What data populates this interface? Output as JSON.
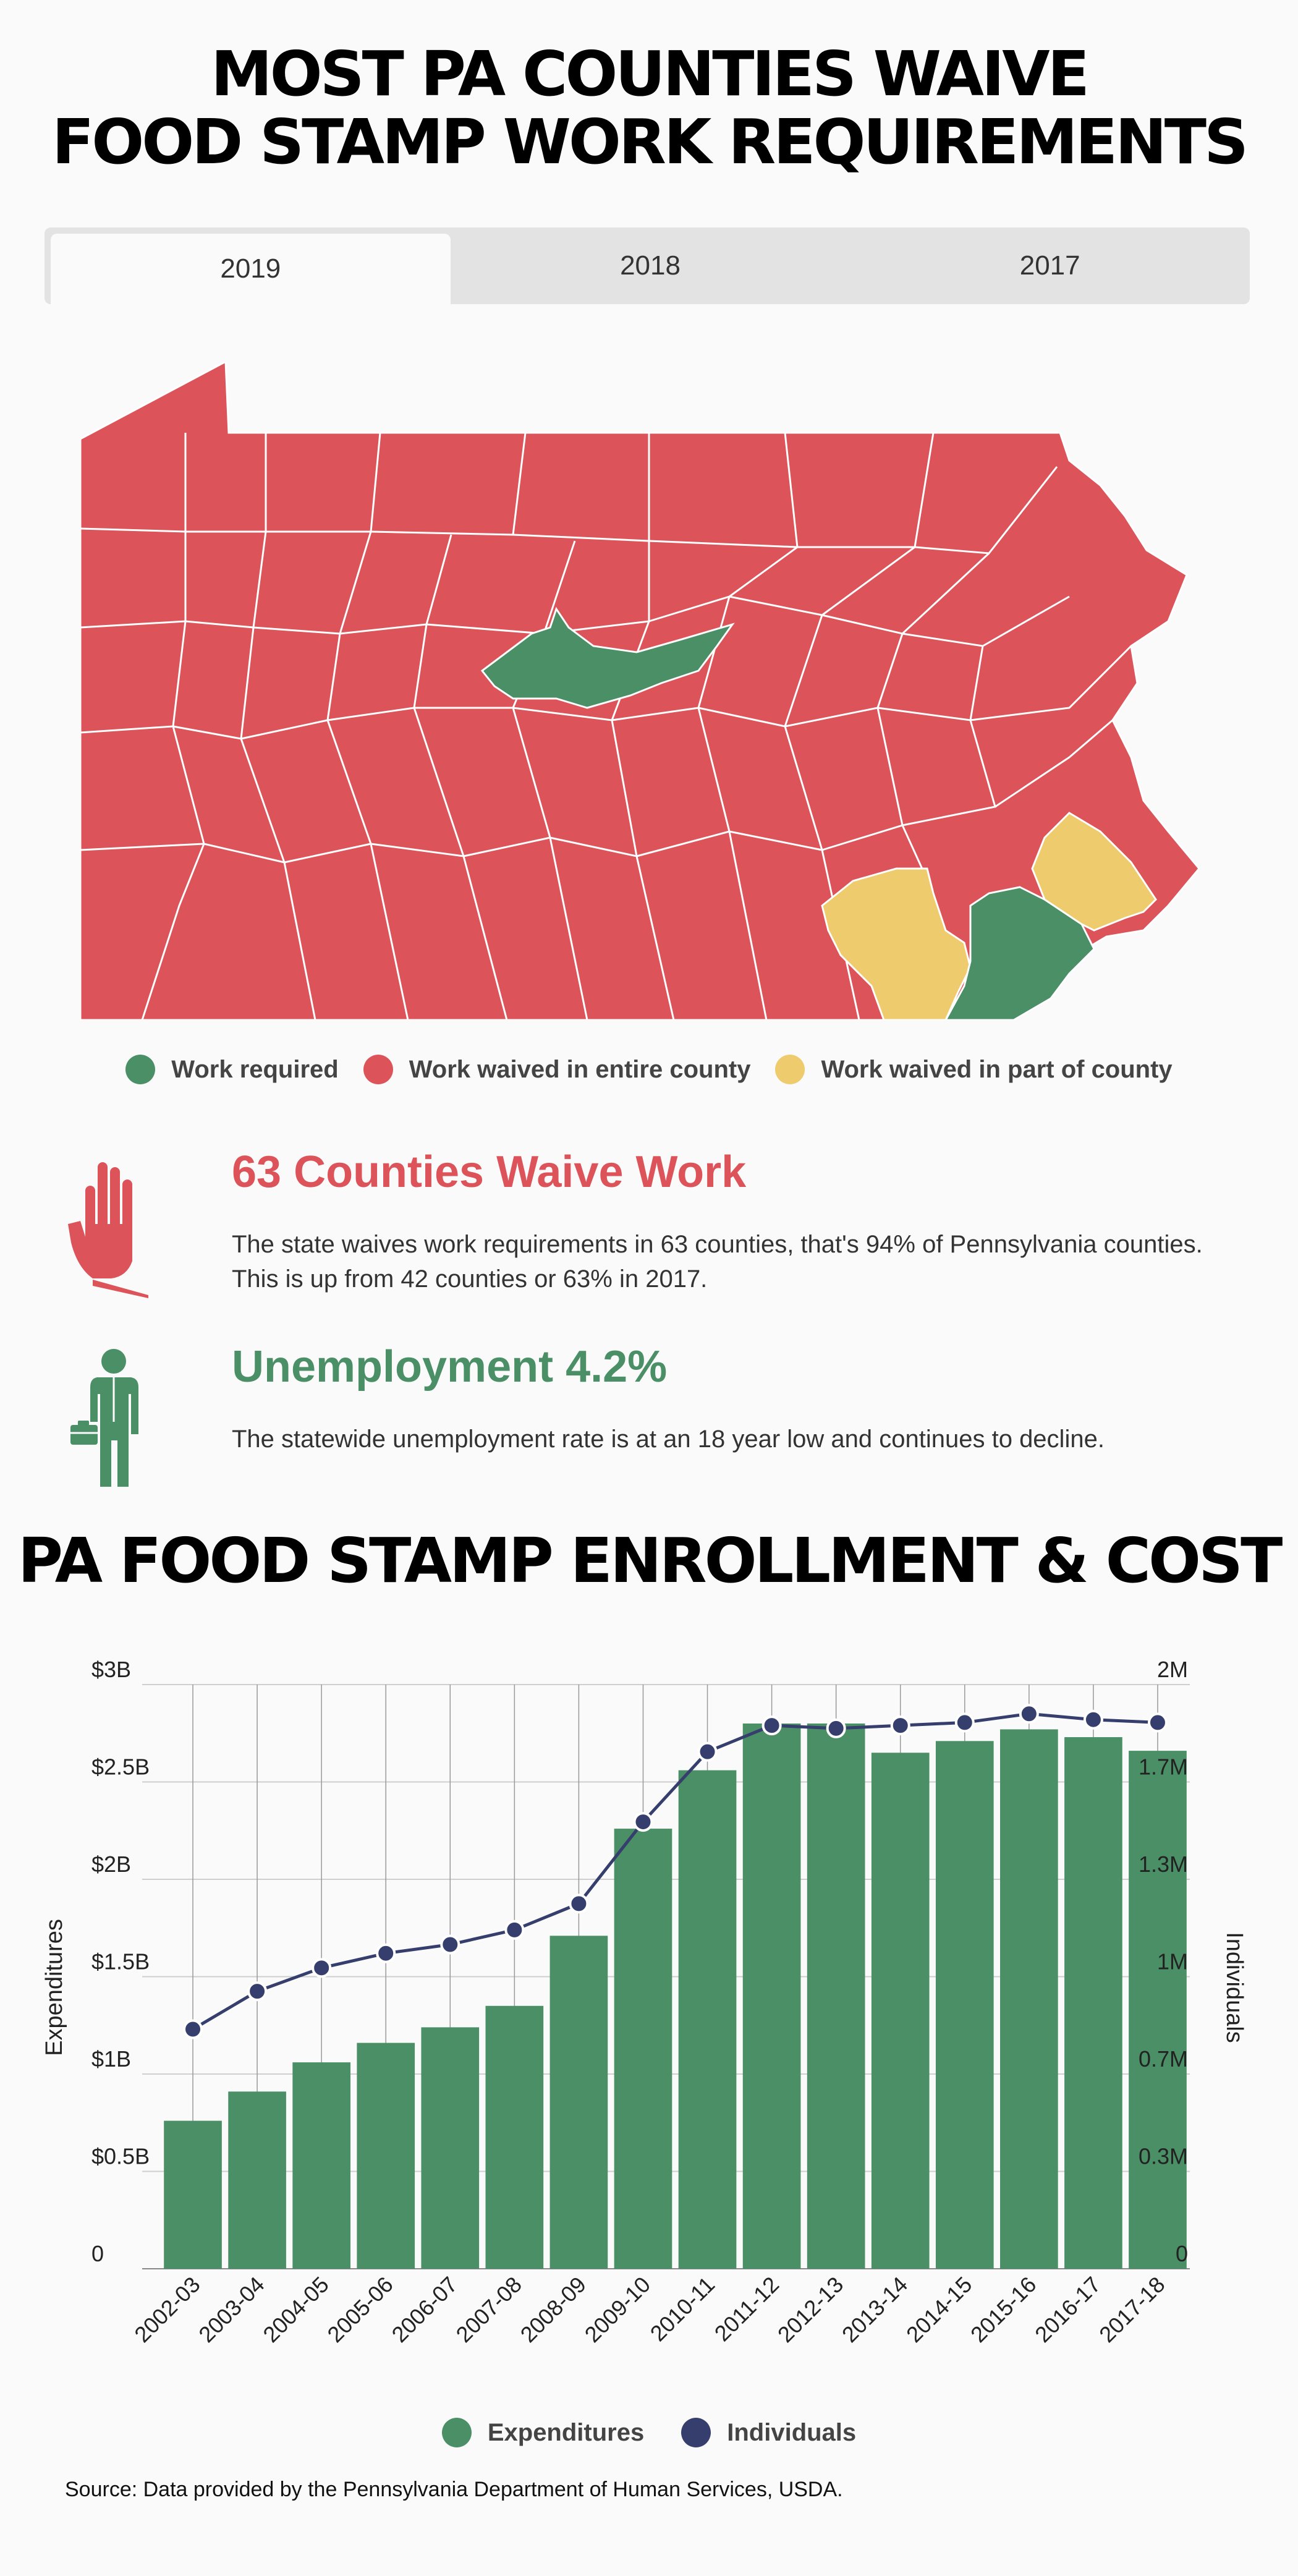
{
  "header": {
    "title_line1": "MOST PA COUNTIES WAIVE",
    "title_line2": "FOOD STAMP WORK REQUIREMENTS"
  },
  "tabs": [
    {
      "label": "2019",
      "active": true
    },
    {
      "label": "2018",
      "active": false
    },
    {
      "label": "2017",
      "active": false
    }
  ],
  "map": {
    "colors": {
      "required": "#4a8f66",
      "waived_entire": "#dc5459",
      "waived_part": "#eecb6c"
    }
  },
  "legend": [
    {
      "label": "Work required",
      "color": "#4a8f66"
    },
    {
      "label": "Work waived in entire county",
      "color": "#dc5459"
    },
    {
      "label": "Work waived in part of county",
      "color": "#eecb6c"
    }
  ],
  "stats": [
    {
      "heading": "63 Counties Waive Work",
      "text": "The state waives work requirements in 63 counties, that's 94% of Pennsylvania counties. This is up from 42 counties or 63% in 2017.",
      "icon": "stop-hand-icon",
      "color": "#dc5459"
    },
    {
      "heading": "Unemployment 4.2%",
      "text": "The statewide unemployment rate is at an 18 year low and continues to decline.",
      "icon": "businessman-icon",
      "color": "#4a8f66"
    }
  ],
  "chart_title": "PA FOOD STAMP ENROLLMENT & COST",
  "chart_data": {
    "type": "bar",
    "categories": [
      "2002-03",
      "2003-04",
      "2004-05",
      "2005-06",
      "2006-07",
      "2007-08",
      "2008-09",
      "2009-10",
      "2010-11",
      "2011-12",
      "2012-13",
      "2013-14",
      "2014-15",
      "2015-16",
      "2016-17",
      "2017-18"
    ],
    "series": [
      {
        "name": "Expenditures",
        "type": "bar",
        "axis": "left",
        "color": "#4a8f66",
        "values": [
          0.76,
          0.91,
          1.06,
          1.16,
          1.24,
          1.35,
          1.71,
          2.26,
          2.56,
          2.8,
          2.8,
          2.65,
          2.71,
          2.77,
          2.73,
          2.66
        ]
      },
      {
        "name": "Individuals",
        "type": "line",
        "axis": "right",
        "color": "#353e6c",
        "values": [
          0.82,
          0.95,
          1.03,
          1.08,
          1.11,
          1.16,
          1.25,
          1.53,
          1.77,
          1.86,
          1.85,
          1.86,
          1.87,
          1.9,
          1.88,
          1.87
        ]
      }
    ],
    "y_left": {
      "label": "Expenditures",
      "ticks": [
        "0",
        "$0.5B",
        "$1B",
        "$1.5B",
        "$2B",
        "$2.5B",
        "$3B"
      ],
      "range": [
        0,
        3
      ]
    },
    "y_right": {
      "label": "Individuals",
      "ticks": [
        "0",
        "0.3M",
        "0.7M",
        "1M",
        "1.3M",
        "1.7M",
        "2M"
      ],
      "range": [
        0,
        2
      ]
    },
    "grid": true,
    "legend_position": "bottom"
  },
  "source": "Source: Data provided by the Pennsylvania Department of Human Services, USDA."
}
